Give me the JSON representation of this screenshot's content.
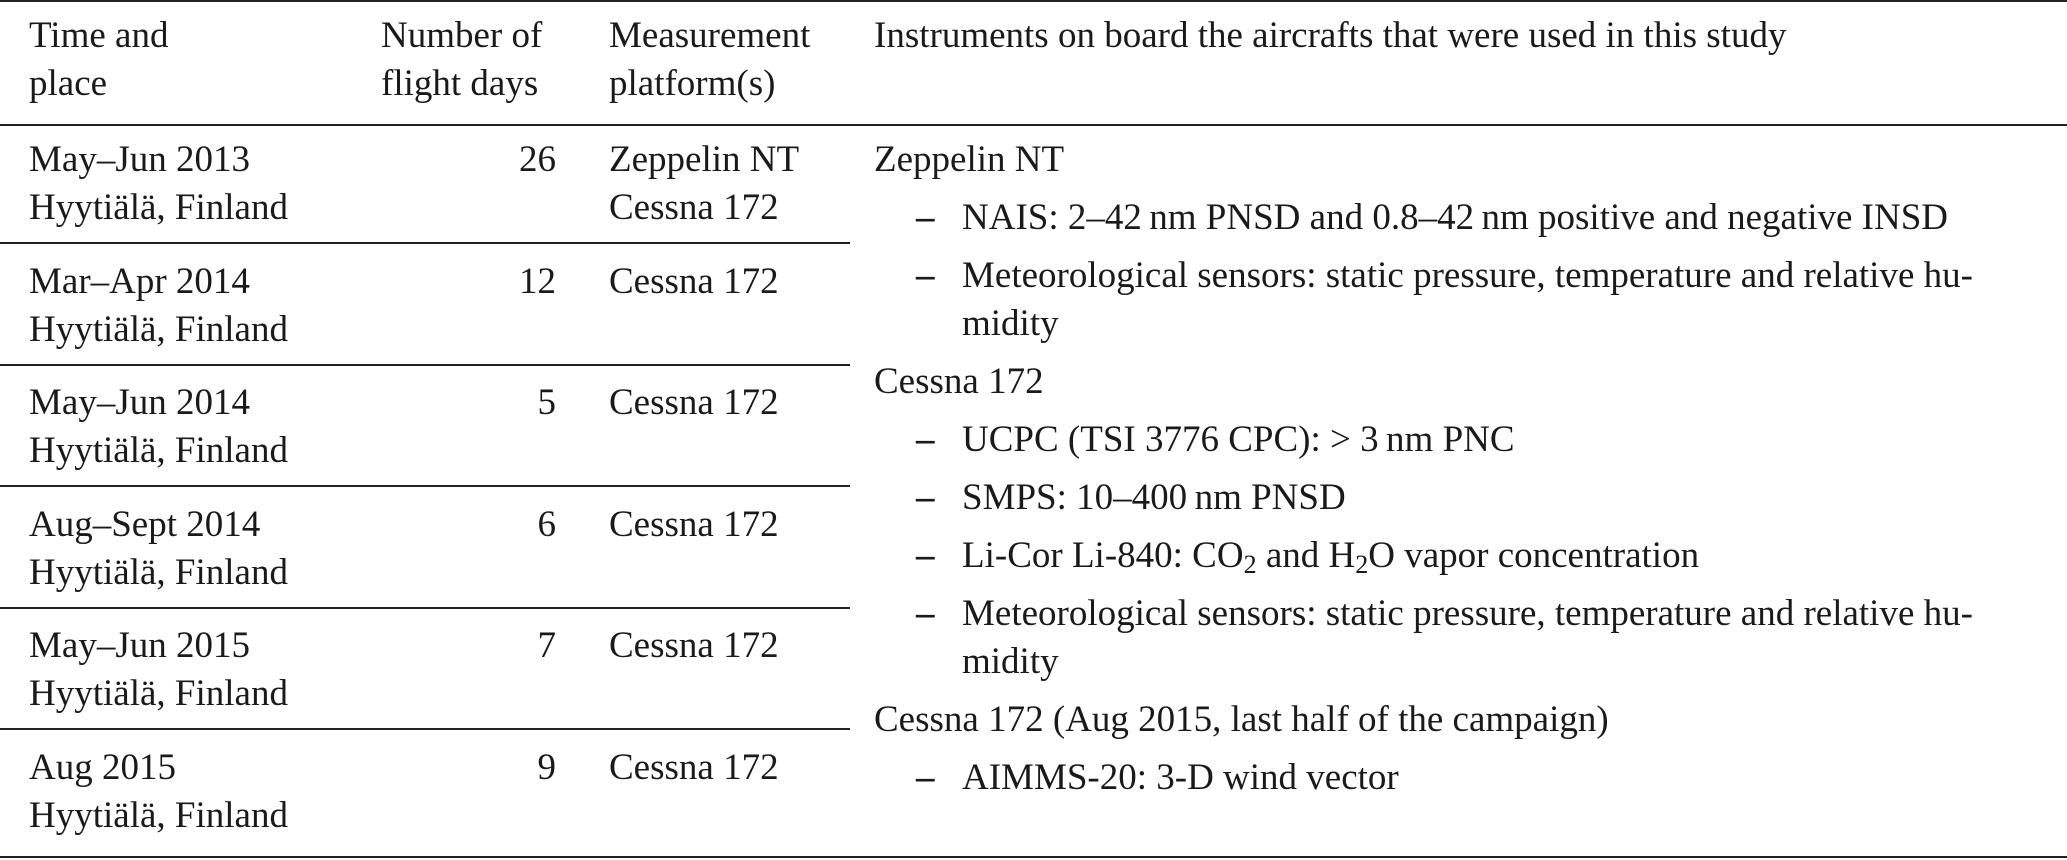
{
  "table": {
    "header": [
      "Time and place",
      "Number of flight days",
      "Measurement platform(s)",
      "Instruments on board the aircrafts that were used in this study"
    ],
    "rows": [
      {
        "time": "May–Jun 2013",
        "place": "Hyytiälä, Finland",
        "days": 26,
        "platforms": [
          "Zeppelin NT",
          "Cessna 172"
        ]
      },
      {
        "time": "Mar–Apr 2014",
        "place": "Hyytiälä, Finland",
        "days": 12,
        "platforms": [
          "Cessna 172"
        ]
      },
      {
        "time": "May–Jun 2014",
        "place": "Hyytiälä, Finland",
        "days": 5,
        "platforms": [
          "Cessna 172"
        ]
      },
      {
        "time": "Aug–Sept 2014",
        "place": "Hyytiälä, Finland",
        "days": 6,
        "platforms": [
          "Cessna 172"
        ]
      },
      {
        "time": "May–Jun 2015",
        "place": "Hyytiälä, Finland",
        "days": 7,
        "platforms": [
          "Cessna 172"
        ]
      },
      {
        "time": "Aug 2015",
        "place": "Hyytiälä, Finland",
        "days": 9,
        "platforms": [
          "Cessna 172"
        ]
      }
    ],
    "instruments": [
      {
        "platform": "Zeppelin NT",
        "items": [
          [
            "NAIS: 2–42 nm PNSD and 0.8–42 nm positive and negative INSD"
          ],
          [
            "Meteorological sensors: static pressure, temperature and relative hu­midity"
          ]
        ]
      },
      {
        "platform": "Cessna 172",
        "items": [
          [
            "UCPC (TSI 3776 CPC): > 3 nm PNC"
          ],
          [
            "SMPS: 10–400 nm PNSD"
          ],
          [
            "Li-Cor Li-840: CO",
            "2",
            " and H",
            "2",
            "O vapor concentration"
          ],
          [
            "Meteorological sensors: static pressure, temperature and relative hu­midity"
          ]
        ]
      },
      {
        "platform": "Cessna 172 (Aug 2015, last half of the campaign)",
        "items": [
          [
            "AIMMS-20: 3-D wind vector"
          ]
        ]
      }
    ]
  }
}
